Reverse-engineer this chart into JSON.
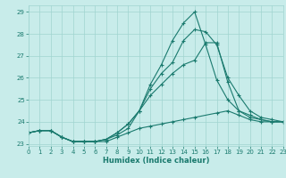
{
  "xlabel": "Humidex (Indice chaleur)",
  "bg_color": "#c8ecea",
  "grid_color": "#a0d4d0",
  "line_color": "#1a7a6e",
  "xlim": [
    0,
    23
  ],
  "ylim": [
    22.9,
    29.3
  ],
  "xticks": [
    0,
    1,
    2,
    3,
    4,
    5,
    6,
    7,
    8,
    9,
    10,
    11,
    12,
    13,
    14,
    15,
    16,
    17,
    18,
    19,
    20,
    21,
    22,
    23
  ],
  "yticks": [
    23,
    24,
    25,
    26,
    27,
    28,
    29
  ],
  "series_x": [
    [
      0,
      1,
      2,
      3,
      4,
      5,
      6,
      7,
      8,
      9,
      10,
      11,
      12,
      13,
      14,
      15,
      17,
      18,
      19,
      20,
      21,
      22,
      23
    ],
    [
      0,
      1,
      2,
      3,
      4,
      5,
      6,
      7,
      8,
      9,
      10,
      11,
      12,
      13,
      14,
      15,
      16,
      17,
      18,
      19,
      20,
      21,
      22,
      23
    ],
    [
      0,
      1,
      2,
      3,
      4,
      5,
      6,
      7,
      8,
      9,
      10,
      11,
      12,
      13,
      14,
      15,
      16,
      17,
      18,
      19,
      20,
      21,
      22,
      23
    ],
    [
      0,
      1,
      2,
      3,
      4,
      5,
      6,
      7,
      8,
      9,
      10,
      11,
      12,
      13,
      14,
      15,
      16,
      17,
      18,
      19,
      20,
      21,
      22,
      23
    ]
  ],
  "series_y": [
    [
      23.5,
      23.6,
      23.6,
      23.3,
      23.1,
      23.1,
      23.1,
      23.1,
      23.3,
      23.5,
      23.7,
      23.8,
      23.9,
      24.0,
      24.1,
      24.2,
      24.4,
      24.5,
      24.3,
      24.1,
      24.0,
      24.0,
      24.0
    ],
    [
      23.5,
      23.6,
      23.6,
      23.3,
      23.1,
      23.1,
      23.1,
      23.2,
      23.5,
      23.9,
      24.5,
      25.2,
      25.7,
      26.2,
      26.6,
      26.8,
      27.6,
      27.6,
      25.8,
      24.5,
      24.2,
      24.1,
      24.0,
      24.0
    ],
    [
      23.5,
      23.6,
      23.6,
      23.3,
      23.1,
      23.1,
      23.1,
      23.2,
      23.5,
      23.9,
      24.5,
      25.5,
      26.2,
      26.7,
      27.7,
      28.2,
      28.1,
      27.5,
      26.0,
      25.2,
      24.5,
      24.2,
      24.1,
      24.0
    ],
    [
      23.5,
      23.6,
      23.6,
      23.3,
      23.1,
      23.1,
      23.1,
      23.2,
      23.4,
      23.7,
      24.5,
      25.7,
      26.6,
      27.7,
      28.5,
      29.0,
      27.5,
      25.9,
      25.0,
      24.5,
      24.3,
      24.1,
      24.0,
      24.0
    ]
  ]
}
